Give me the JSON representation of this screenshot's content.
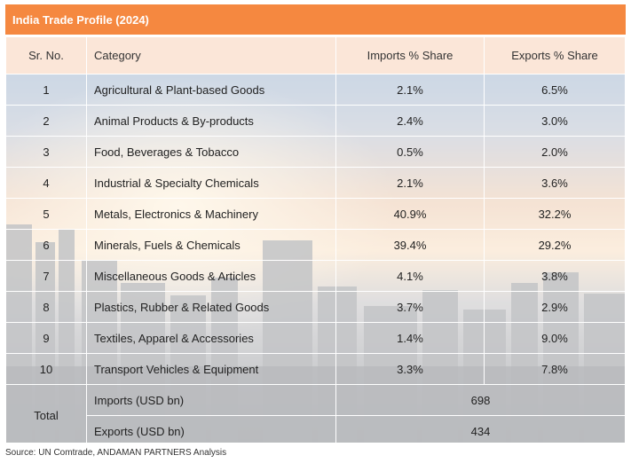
{
  "title": "India Trade Profile (2024)",
  "headers": [
    "Sr. No.",
    "Category",
    "Imports % Share",
    "Exports % Share"
  ],
  "rows": [
    {
      "no": "1",
      "category": "Agricultural & Plant-based Goods",
      "imports": "2.1%",
      "exports": "6.5%"
    },
    {
      "no": "2",
      "category": "Animal Products & By-products",
      "imports": "2.4%",
      "exports": "3.0%"
    },
    {
      "no": "3",
      "category": "Food, Beverages & Tobacco",
      "imports": "0.5%",
      "exports": "2.0%"
    },
    {
      "no": "4",
      "category": "Industrial & Specialty Chemicals",
      "imports": "2.1%",
      "exports": "3.6%"
    },
    {
      "no": "5",
      "category": "Metals, Electronics & Machinery",
      "imports": "40.9%",
      "exports": "32.2%"
    },
    {
      "no": "6",
      "category": "Minerals, Fuels & Chemicals",
      "imports": "39.4%",
      "exports": "29.2%"
    },
    {
      "no": "7",
      "category": "Miscellaneous Goods & Articles",
      "imports": "4.1%",
      "exports": "3.8%"
    },
    {
      "no": "8",
      "category": "Plastics, Rubber & Related Goods",
      "imports": "3.7%",
      "exports": "2.9%"
    },
    {
      "no": "9",
      "category": "Textiles, Apparel & Accessories",
      "imports": "1.4%",
      "exports": "9.0%"
    },
    {
      "no": "10",
      "category": "Transport Vehicles & Equipment",
      "imports": "3.3%",
      "exports": "7.8%"
    }
  ],
  "total": {
    "label": "Total",
    "imports_label": "Imports (USD bn)",
    "imports_value": "698",
    "exports_label": "Exports (USD bn)",
    "exports_value": "434"
  },
  "source": "Source: UN Comtrade, ANDAMAN PARTNERS Analysis",
  "colors": {
    "header_bar": "#f58840",
    "header_row": "#fbe6d8"
  }
}
